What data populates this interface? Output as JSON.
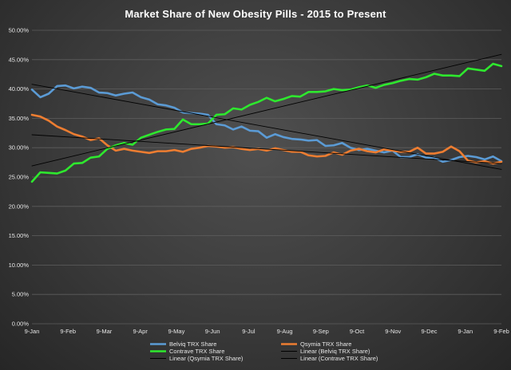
{
  "chart_data": {
    "type": "line",
    "title": "Market  Share  of  New Obesity   Pills  - 2015 to Present",
    "xlabel": "",
    "ylabel": "",
    "ylim": [
      0,
      50
    ],
    "y_ticks": [
      "0.00%",
      "5.00%",
      "10.00%",
      "15.00%",
      "20.00%",
      "25.00%",
      "30.00%",
      "35.00%",
      "40.00%",
      "45.00%",
      "50.00%"
    ],
    "y_tick_values": [
      0,
      5,
      10,
      15,
      20,
      25,
      30,
      35,
      40,
      45,
      50
    ],
    "x_ticks": [
      "9-Jan",
      "9-Feb",
      "9-Mar",
      "9-Apr",
      "9-May",
      "9-Jun",
      "9-Jul",
      "9-Aug",
      "9-Sep",
      "9-Oct",
      "9-Nov",
      "9-Dec",
      "9-Jan",
      "9-Feb"
    ],
    "x_index_range": [
      0,
      56
    ],
    "grid": "horizontal",
    "legend_position": "bottom",
    "series": [
      {
        "name": "Belviq TRX Share",
        "color": "#5b9bd5",
        "style": "thick",
        "x": [
          0,
          1,
          2,
          3,
          4,
          5,
          6,
          7,
          8,
          9,
          10,
          11,
          12,
          13,
          14,
          15,
          16,
          17,
          18,
          19,
          20,
          21,
          22,
          23,
          24,
          25,
          26,
          27,
          28,
          29,
          30,
          31,
          32,
          33,
          34,
          35,
          36,
          37,
          38,
          39,
          40,
          41,
          42,
          43,
          44,
          45,
          46,
          47,
          48,
          49,
          50,
          51,
          52,
          53,
          54,
          55,
          56
        ],
        "values": [
          39.9,
          38.6,
          39.2,
          40.5,
          40.6,
          40.1,
          40.4,
          40.2,
          39.4,
          39.3,
          38.9,
          39.2,
          39.4,
          38.6,
          38.2,
          37.4,
          37.2,
          36.8,
          36.0,
          35.9,
          35.8,
          35.6,
          34.0,
          33.8,
          33.1,
          33.6,
          32.9,
          32.8,
          31.7,
          32.3,
          31.8,
          31.5,
          31.4,
          31.2,
          31.3,
          30.3,
          30.4,
          30.8,
          30.0,
          29.6,
          29.8,
          29.5,
          29.2,
          29.5,
          28.4,
          28.4,
          28.9,
          28.3,
          28.3,
          27.6,
          27.9,
          28.4,
          28.6,
          28.4,
          28.0,
          28.5,
          27.7
        ]
      },
      {
        "name": "Qsymia TRX Share",
        "color": "#ed7d31",
        "style": "thick",
        "x": [
          0,
          1,
          2,
          3,
          4,
          5,
          6,
          7,
          8,
          9,
          10,
          11,
          12,
          13,
          14,
          15,
          16,
          17,
          18,
          19,
          20,
          21,
          22,
          23,
          24,
          25,
          26,
          27,
          28,
          29,
          30,
          31,
          32,
          33,
          34,
          35,
          36,
          37,
          38,
          39,
          40,
          41,
          42,
          43,
          44,
          45,
          46,
          47,
          48,
          49,
          50,
          51,
          52,
          53,
          54,
          55,
          56
        ],
        "values": [
          35.6,
          35.3,
          34.6,
          33.6,
          33.0,
          32.3,
          31.9,
          31.3,
          31.6,
          30.4,
          29.5,
          29.8,
          29.5,
          29.3,
          29.1,
          29.4,
          29.4,
          29.6,
          29.3,
          29.8,
          30.0,
          30.3,
          30.2,
          30.0,
          30.1,
          29.8,
          29.6,
          29.8,
          29.5,
          29.9,
          29.6,
          29.3,
          29.3,
          28.7,
          28.5,
          28.6,
          29.2,
          28.8,
          29.5,
          29.8,
          29.4,
          29.2,
          29.7,
          29.5,
          29.3,
          29.3,
          30.0,
          29.0,
          29.0,
          29.3,
          30.2,
          29.4,
          27.8,
          27.5,
          27.7,
          27.3,
          27.6
        ]
      },
      {
        "name": "Contrave TRX Share",
        "color": "#2ee82e",
        "style": "thick",
        "x": [
          0,
          1,
          2,
          3,
          4,
          5,
          6,
          7,
          8,
          9,
          10,
          11,
          12,
          13,
          14,
          15,
          16,
          17,
          18,
          19,
          20,
          21,
          22,
          23,
          24,
          25,
          26,
          27,
          28,
          29,
          30,
          31,
          32,
          33,
          34,
          35,
          36,
          37,
          38,
          39,
          40,
          41,
          42,
          43,
          44,
          45,
          46,
          47,
          48,
          49,
          50,
          51,
          52,
          53,
          54,
          55,
          56
        ],
        "values": [
          24.2,
          25.8,
          25.7,
          25.6,
          26.1,
          27.3,
          27.4,
          28.3,
          28.5,
          29.8,
          30.4,
          30.8,
          30.5,
          31.7,
          32.2,
          32.7,
          33.1,
          33.2,
          34.8,
          34.0,
          34.0,
          34.1,
          35.6,
          35.7,
          36.7,
          36.5,
          37.3,
          37.8,
          38.5,
          37.9,
          38.3,
          38.8,
          38.7,
          39.5,
          39.5,
          39.6,
          40.0,
          39.8,
          39.9,
          40.3,
          40.6,
          40.2,
          40.7,
          41.0,
          41.4,
          41.7,
          41.6,
          42.0,
          42.6,
          42.3,
          42.3,
          42.2,
          43.5,
          43.3,
          43.1,
          44.3,
          43.9
        ]
      },
      {
        "name": "Linear (Belviq TRX Share)",
        "color": "#000000",
        "style": "thin",
        "x": [
          0,
          56
        ],
        "values": [
          40.8,
          26.3
        ]
      },
      {
        "name": "Linear (Qsymia TRX Share)",
        "color": "#000000",
        "style": "thin",
        "x": [
          0,
          56
        ],
        "values": [
          32.2,
          27.3
        ]
      },
      {
        "name": "Linear (Contrave TRX Share)",
        "color": "#000000",
        "style": "thin",
        "x": [
          0,
          56
        ],
        "values": [
          26.9,
          45.9
        ]
      }
    ]
  }
}
